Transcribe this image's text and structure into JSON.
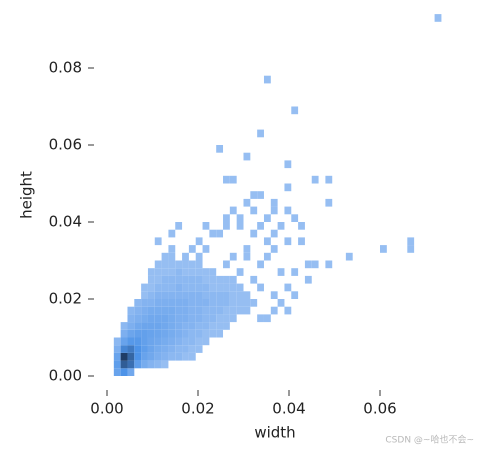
{
  "chart_data": {
    "type": "histogram2d",
    "xlabel": "width",
    "ylabel": "height",
    "xlim": [
      -0.002,
      0.076
    ],
    "ylim": [
      -0.002,
      0.096
    ],
    "xticks": [
      {
        "value": 0,
        "label": "0.00"
      },
      {
        "value": 0.02,
        "label": "0.02"
      },
      {
        "value": 0.04,
        "label": "0.04"
      },
      {
        "value": 0.06,
        "label": "0.06"
      }
    ],
    "yticks": [
      {
        "value": 0,
        "label": "0.00"
      },
      {
        "value": 0.02,
        "label": "0.02"
      },
      {
        "value": 0.04,
        "label": "0.04"
      },
      {
        "value": 0.06,
        "label": "0.06"
      },
      {
        "value": 0.08,
        "label": "0.08"
      }
    ],
    "binwidth": [
      0.0015,
      0.002
    ],
    "colors": [
      "#b0cdf6",
      "#4d93e8",
      "#1f3d66"
    ],
    "rows": [
      {
        "y": 0,
        "x": [
          0.0015,
          0.003,
          0.0045
        ],
        "count": [
          8,
          15,
          6
        ]
      },
      {
        "y": 0.002,
        "x": [
          0.0015,
          0.003,
          0.0045,
          0.006,
          0.0075,
          0.009,
          0.0105,
          0.012
        ],
        "count": [
          10,
          40,
          30,
          10,
          5,
          3,
          2,
          1
        ]
      },
      {
        "y": 0.004,
        "x": [
          0.0015,
          0.003,
          0.0045,
          0.006,
          0.0075,
          0.009,
          0.0105,
          0.012,
          0.0135,
          0.015,
          0.0165,
          0.018
        ],
        "count": [
          8,
          60,
          35,
          15,
          8,
          6,
          4,
          3,
          2,
          2,
          1,
          1
        ]
      },
      {
        "y": 0.006,
        "x": [
          0.0015,
          0.003,
          0.0045,
          0.006,
          0.0075,
          0.009,
          0.0105,
          0.012,
          0.0135,
          0.015,
          0.0165,
          0.018,
          0.0195
        ],
        "count": [
          4,
          20,
          25,
          15,
          10,
          7,
          5,
          4,
          3,
          2,
          2,
          1,
          1
        ]
      },
      {
        "y": 0.008,
        "x": [
          0.0015,
          0.003,
          0.0045,
          0.006,
          0.0075,
          0.009,
          0.0105,
          0.012,
          0.0135,
          0.015,
          0.0165,
          0.018,
          0.0195,
          0.021
        ],
        "count": [
          2,
          8,
          12,
          12,
          9,
          7,
          6,
          5,
          4,
          3,
          2,
          2,
          1,
          1
        ]
      },
      {
        "y": 0.01,
        "x": [
          0.003,
          0.0045,
          0.006,
          0.0075,
          0.009,
          0.0105,
          0.012,
          0.0135,
          0.015,
          0.0165,
          0.018,
          0.0195,
          0.021,
          0.0225,
          0.024
        ],
        "count": [
          4,
          7,
          9,
          9,
          8,
          7,
          6,
          5,
          4,
          3,
          2,
          2,
          1,
          1,
          1
        ]
      },
      {
        "y": 0.012,
        "x": [
          0.003,
          0.0045,
          0.006,
          0.0075,
          0.009,
          0.0105,
          0.012,
          0.0135,
          0.015,
          0.0165,
          0.018,
          0.0195,
          0.021,
          0.0225,
          0.024,
          0.0255
        ],
        "count": [
          2,
          4,
          6,
          7,
          7,
          7,
          6,
          5,
          4,
          3,
          3,
          2,
          2,
          1,
          1,
          1
        ]
      },
      {
        "y": 0.014,
        "x": [
          0.0045,
          0.006,
          0.0075,
          0.009,
          0.0105,
          0.012,
          0.0135,
          0.015,
          0.0165,
          0.018,
          0.0195,
          0.021,
          0.0225,
          0.024,
          0.0255,
          0.027,
          0.033,
          0.0345
        ],
        "count": [
          3,
          4,
          5,
          6,
          6,
          6,
          5,
          4,
          4,
          3,
          3,
          2,
          2,
          1,
          1,
          1,
          1,
          1
        ]
      },
      {
        "y": 0.016,
        "x": [
          0.0045,
          0.006,
          0.0075,
          0.009,
          0.0105,
          0.012,
          0.0135,
          0.015,
          0.0165,
          0.018,
          0.0195,
          0.021,
          0.0225,
          0.024,
          0.0255,
          0.027,
          0.0285,
          0.03,
          0.036,
          0.039
        ],
        "count": [
          2,
          3,
          4,
          5,
          5,
          5,
          5,
          4,
          4,
          3,
          3,
          2,
          2,
          2,
          1,
          1,
          1,
          1,
          1,
          1
        ]
      },
      {
        "y": 0.018,
        "x": [
          0.006,
          0.0075,
          0.009,
          0.0105,
          0.012,
          0.0135,
          0.015,
          0.0165,
          0.018,
          0.0195,
          0.021,
          0.0225,
          0.024,
          0.0255,
          0.027,
          0.0285,
          0.03,
          0.0315,
          0.0375
        ],
        "count": [
          2,
          3,
          3,
          4,
          4,
          4,
          4,
          4,
          3,
          3,
          3,
          2,
          2,
          2,
          1,
          1,
          1,
          1,
          1
        ]
      },
      {
        "y": 0.02,
        "x": [
          0.0075,
          0.009,
          0.0105,
          0.012,
          0.0135,
          0.015,
          0.0165,
          0.018,
          0.0195,
          0.021,
          0.0225,
          0.024,
          0.0255,
          0.027,
          0.0285,
          0.03,
          0.036,
          0.0405
        ],
        "count": [
          1,
          2,
          3,
          3,
          3,
          3,
          3,
          3,
          3,
          2,
          2,
          2,
          2,
          1,
          1,
          1,
          1,
          1
        ]
      },
      {
        "y": 0.022,
        "x": [
          0.0075,
          0.009,
          0.0105,
          0.012,
          0.0135,
          0.015,
          0.0165,
          0.018,
          0.0195,
          0.021,
          0.0225,
          0.024,
          0.0255,
          0.027,
          0.0285,
          0.033,
          0.039
        ],
        "count": [
          1,
          1,
          2,
          2,
          2,
          3,
          2,
          2,
          2,
          2,
          1,
          1,
          1,
          1,
          1,
          1,
          1
        ]
      },
      {
        "y": 0.024,
        "x": [
          0.009,
          0.0105,
          0.012,
          0.0135,
          0.015,
          0.0165,
          0.018,
          0.0195,
          0.021,
          0.0225,
          0.024,
          0.0255,
          0.027,
          0.0315,
          0.0435
        ],
        "count": [
          1,
          1,
          2,
          2,
          2,
          2,
          2,
          2,
          1,
          1,
          1,
          1,
          1,
          1,
          1
        ]
      },
      {
        "y": 0.026,
        "x": [
          0.009,
          0.0105,
          0.012,
          0.0135,
          0.015,
          0.0165,
          0.018,
          0.0195,
          0.021,
          0.0225,
          0.0285,
          0.0375,
          0.0405
        ],
        "count": [
          1,
          1,
          1,
          1,
          2,
          1,
          1,
          1,
          1,
          1,
          1,
          1,
          1
        ]
      },
      {
        "y": 0.028,
        "x": [
          0.0105,
          0.012,
          0.0135,
          0.015,
          0.0165,
          0.018,
          0.0195,
          0.0255,
          0.033,
          0.0435,
          0.045,
          0.048
        ],
        "count": [
          1,
          1,
          1,
          1,
          1,
          1,
          1,
          1,
          1,
          1,
          1,
          1
        ]
      },
      {
        "y": 0.03,
        "x": [
          0.012,
          0.0135,
          0.0165,
          0.0195,
          0.027,
          0.03,
          0.0345,
          0.0525
        ],
        "count": [
          1,
          1,
          1,
          1,
          1,
          1,
          1,
          1
        ]
      },
      {
        "y": 0.032,
        "x": [
          0.0135,
          0.018,
          0.021,
          0.03,
          0.036,
          0.06,
          0.066
        ],
        "count": [
          1,
          1,
          1,
          1,
          1,
          1,
          1
        ]
      },
      {
        "y": 0.034,
        "x": [
          0.0105,
          0.0195,
          0.0345,
          0.039,
          0.042,
          0.066
        ],
        "count": [
          1,
          1,
          1,
          1,
          1,
          1
        ]
      },
      {
        "y": 0.036,
        "x": [
          0.0135,
          0.0225,
          0.024,
          0.0315,
          0.036
        ],
        "count": [
          1,
          1,
          1,
          1,
          1
        ]
      },
      {
        "y": 0.038,
        "x": [
          0.015,
          0.021,
          0.0255,
          0.0285,
          0.033,
          0.0375,
          0.042
        ],
        "count": [
          1,
          1,
          1,
          1,
          1,
          1,
          1
        ]
      },
      {
        "y": 0.04,
        "x": [
          0.0255,
          0.0285,
          0.0345,
          0.0405
        ],
        "count": [
          1,
          1,
          1,
          1
        ]
      },
      {
        "y": 0.042,
        "x": [
          0.027,
          0.0315,
          0.036,
          0.039
        ],
        "count": [
          1,
          1,
          1,
          1
        ]
      },
      {
        "y": 0.044,
        "x": [
          0.03,
          0.036,
          0.048
        ],
        "count": [
          1,
          1,
          1
        ]
      },
      {
        "y": 0.046,
        "x": [
          0.0315,
          0.033
        ],
        "count": [
          1,
          1
        ]
      },
      {
        "y": 0.048,
        "x": [
          0.039
        ],
        "count": [
          1
        ]
      },
      {
        "y": 0.05,
        "x": [
          0.0255,
          0.027,
          0.045,
          0.048
        ],
        "count": [
          1,
          1,
          1,
          1
        ]
      },
      {
        "y": 0.054,
        "x": [
          0.039
        ],
        "count": [
          1
        ]
      },
      {
        "y": 0.056,
        "x": [
          0.03
        ],
        "count": [
          1
        ]
      },
      {
        "y": 0.058,
        "x": [
          0.024
        ],
        "count": [
          1
        ]
      },
      {
        "y": 0.062,
        "x": [
          0.033
        ],
        "count": [
          1
        ]
      },
      {
        "y": 0.068,
        "x": [
          0.0405
        ],
        "count": [
          1
        ]
      },
      {
        "y": 0.076,
        "x": [
          0.0345
        ],
        "count": [
          1
        ]
      },
      {
        "y": 0.092,
        "x": [
          0.072
        ],
        "count": [
          1
        ]
      }
    ]
  },
  "watermark": "CSDN @~哈也不会~"
}
